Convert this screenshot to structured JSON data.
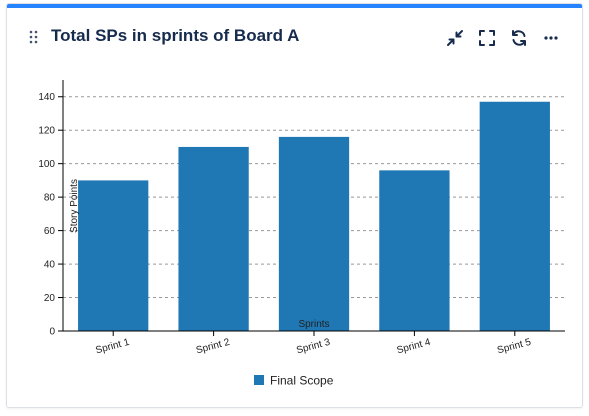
{
  "card": {
    "title": "Total SPs in sprints of Board A",
    "accent_color": "#2684ff"
  },
  "toolbar": {
    "icons": [
      "minimize-icon",
      "fullscreen-icon",
      "refresh-icon",
      "more-icon"
    ],
    "more_label": "···"
  },
  "chart_data": {
    "type": "bar",
    "categories": [
      "Sprint 1",
      "Sprint 2",
      "Sprint 3",
      "Sprint 4",
      "Sprint 5"
    ],
    "series": [
      {
        "name": "Final Scope",
        "values": [
          90,
          110,
          116,
          96,
          137
        ],
        "color": "#1f77b4"
      }
    ],
    "xlabel": "Sprints",
    "ylabel": "Story Points",
    "ylim": [
      0,
      150
    ],
    "yticks": [
      0,
      20,
      40,
      60,
      80,
      100,
      120,
      140
    ],
    "grid": true,
    "legend": "bottom-center"
  }
}
